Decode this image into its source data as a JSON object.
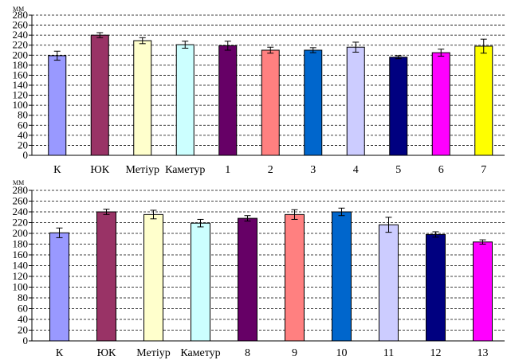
{
  "chart_data": [
    {
      "type": "bar",
      "unit": "мм",
      "categories": [
        "К",
        "ЮК",
        "Метіур",
        "Каметур",
        "1",
        "2",
        "3",
        "4",
        "5",
        "6",
        "7"
      ],
      "values": [
        199,
        240,
        229,
        221,
        219,
        210,
        210,
        216,
        196,
        205,
        218
      ],
      "errors": [
        9,
        5,
        6,
        7,
        9,
        6,
        5,
        10,
        3,
        7,
        14
      ],
      "colors": [
        "#9999ff",
        "#993366",
        "#ffffcc",
        "#ccffff",
        "#660066",
        "#ff8080",
        "#0066cc",
        "#ccccff",
        "#000080",
        "#ff00ff",
        "#ffff00"
      ],
      "y_ticks": [
        0,
        20,
        40,
        60,
        80,
        100,
        120,
        140,
        160,
        180,
        200,
        220,
        240,
        260,
        280
      ],
      "ylim": [
        0,
        280
      ],
      "grid": "dashed horizontal"
    },
    {
      "type": "bar",
      "unit": "мм",
      "categories": [
        "К",
        "ЮК",
        "Метіур",
        "Каметур",
        "8",
        "9",
        "10",
        "11",
        "12",
        "13"
      ],
      "values": [
        201,
        240,
        235,
        219,
        228,
        235,
        240,
        216,
        198,
        184
      ],
      "errors": [
        9,
        5,
        8,
        7,
        5,
        9,
        7,
        14,
        5,
        4
      ],
      "colors": [
        "#9999ff",
        "#993366",
        "#ffffcc",
        "#ccffff",
        "#660066",
        "#ff8080",
        "#0066cc",
        "#ccccff",
        "#000080",
        "#ff00ff"
      ],
      "y_ticks": [
        0,
        20,
        40,
        60,
        80,
        100,
        120,
        140,
        160,
        180,
        200,
        220,
        240,
        260,
        280
      ],
      "ylim": [
        0,
        280
      ],
      "grid": "dashed horizontal"
    }
  ]
}
